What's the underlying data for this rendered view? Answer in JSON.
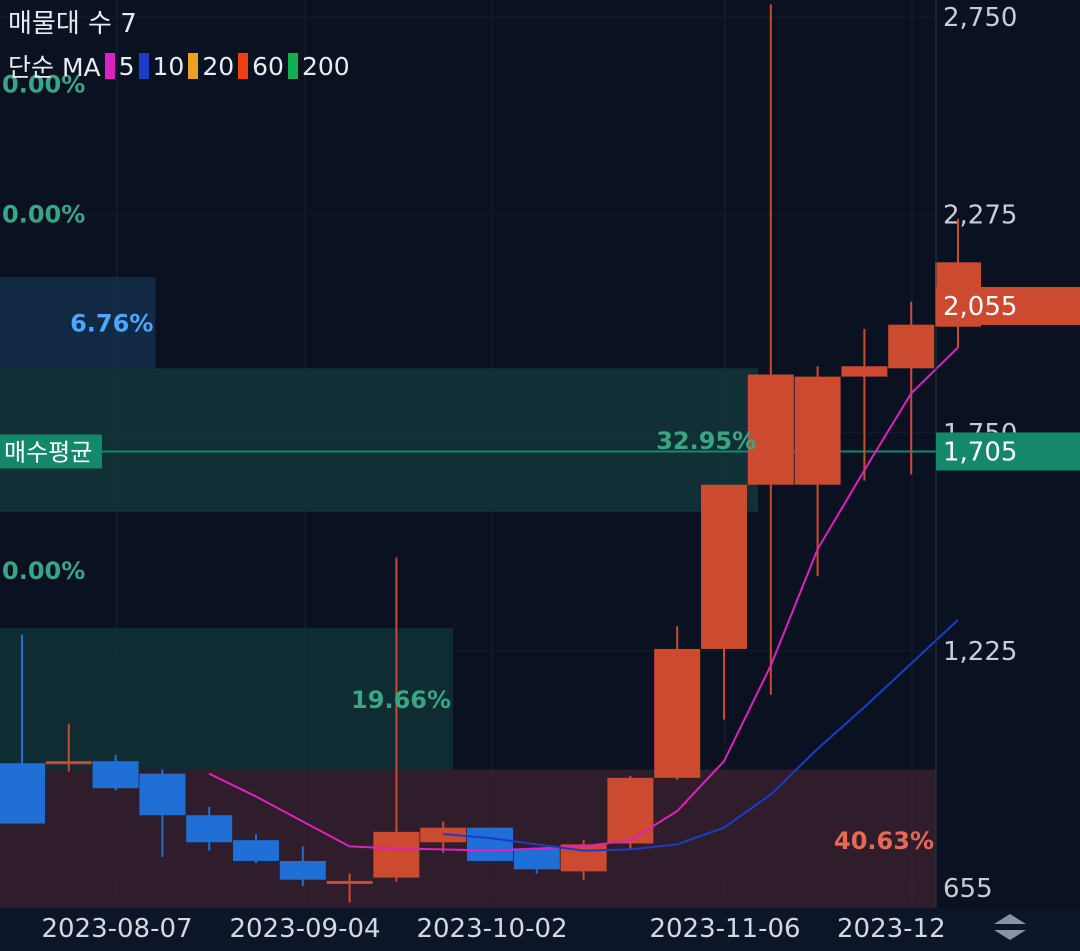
{
  "header": {
    "title": "매물대 수 7",
    "ma_type": "단순 MA",
    "ma_periods": [
      "5",
      "10",
      "20",
      "60",
      "200"
    ],
    "ma_colors": [
      "#e020c0",
      "#1a3cc8",
      "#f0a020",
      "#f04010",
      "#10b050"
    ]
  },
  "colors": {
    "background": "#0a1222",
    "up": "#cc4a30",
    "down": "#1f6fd6",
    "ma5": "#e020c0",
    "ma10": "#1a3cc8",
    "avg_line": "#15876a",
    "pct_green": "#3aa584",
    "pct_blue": "#4da6ff",
    "pct_red": "#e56a55"
  },
  "chart_data": {
    "type": "candlestick",
    "y_ticks": [
      655,
      1225,
      1750,
      2275,
      2750
    ],
    "y_tick_labels": [
      "655",
      "1,225",
      "1,750",
      "2,275",
      "2,750"
    ],
    "x_ticks": [
      "2023-08-07",
      "2023-09-04",
      "2023-10-02",
      "2023-11-06",
      "2023-12"
    ],
    "current_price": 2055,
    "current_price_label": "2,055",
    "avg_buy_price": 1705,
    "avg_buy_price_value_label": "1,705",
    "avg_buy_label": "매수평균",
    "candles": [
      {
        "o": 955,
        "h": 1265,
        "l": 810,
        "c": 810
      },
      {
        "o": 955,
        "h": 1050,
        "l": 935,
        "c": 960
      },
      {
        "o": 960,
        "h": 975,
        "l": 890,
        "c": 895
      },
      {
        "o": 930,
        "h": 940,
        "l": 730,
        "c": 830
      },
      {
        "o": 830,
        "h": 850,
        "l": 745,
        "c": 765
      },
      {
        "o": 770,
        "h": 785,
        "l": 715,
        "c": 720
      },
      {
        "o": 720,
        "h": 755,
        "l": 660,
        "c": 675
      },
      {
        "o": 670,
        "h": 690,
        "l": 620,
        "c": 672
      },
      {
        "o": 680,
        "h": 1450,
        "l": 670,
        "c": 790
      },
      {
        "o": 765,
        "h": 815,
        "l": 740,
        "c": 800
      },
      {
        "o": 800,
        "h": 800,
        "l": 720,
        "c": 720
      },
      {
        "o": 750,
        "h": 750,
        "l": 690,
        "c": 700
      },
      {
        "o": 695,
        "h": 770,
        "l": 675,
        "c": 760
      },
      {
        "o": 762,
        "h": 925,
        "l": 750,
        "c": 920
      },
      {
        "o": 920,
        "h": 1285,
        "l": 915,
        "c": 1230
      },
      {
        "o": 1230,
        "h": 1620,
        "l": 1060,
        "c": 1625
      },
      {
        "o": 1625,
        "h": 2780,
        "l": 1120,
        "c": 1890
      },
      {
        "o": 1625,
        "h": 1910,
        "l": 1405,
        "c": 1885
      },
      {
        "o": 1885,
        "h": 2000,
        "l": 1635,
        "c": 1910
      },
      {
        "o": 1905,
        "h": 2065,
        "l": 1650,
        "c": 2010
      },
      {
        "o": 2005,
        "h": 2265,
        "l": 1955,
        "c": 2160
      }
    ],
    "ma5": [
      null,
      null,
      null,
      null,
      930,
      875,
      815,
      755,
      750,
      748,
      745,
      750,
      755,
      770,
      840,
      960,
      1190,
      1470,
      1660,
      1845,
      1955
    ],
    "ma10": [
      null,
      null,
      null,
      null,
      null,
      null,
      null,
      null,
      null,
      785,
      775,
      760,
      745,
      748,
      760,
      800,
      880,
      990,
      1090,
      1195,
      1300
    ],
    "volume_profile": [
      {
        "price_from": 2430,
        "price_to": 2750,
        "pct": "0.00%",
        "width_frac": 0.0
      },
      {
        "price_from": 2125,
        "price_to": 2430,
        "pct": "0.00%",
        "width_frac": 0.0
      },
      {
        "price_from": 1905,
        "price_to": 2125,
        "pct": "6.76%",
        "width_frac": 0.166
      },
      {
        "price_from": 1560,
        "price_to": 1905,
        "pct": "32.95%",
        "width_frac": 0.81
      },
      {
        "price_from": 1280,
        "price_to": 1560,
        "pct": "0.00%",
        "width_frac": 0.0
      },
      {
        "price_from": 940,
        "price_to": 1280,
        "pct": "19.66%",
        "width_frac": 0.484
      },
      {
        "price_from": 600,
        "price_to": 940,
        "pct": "40.63%",
        "width_frac": 1.0
      }
    ]
  }
}
